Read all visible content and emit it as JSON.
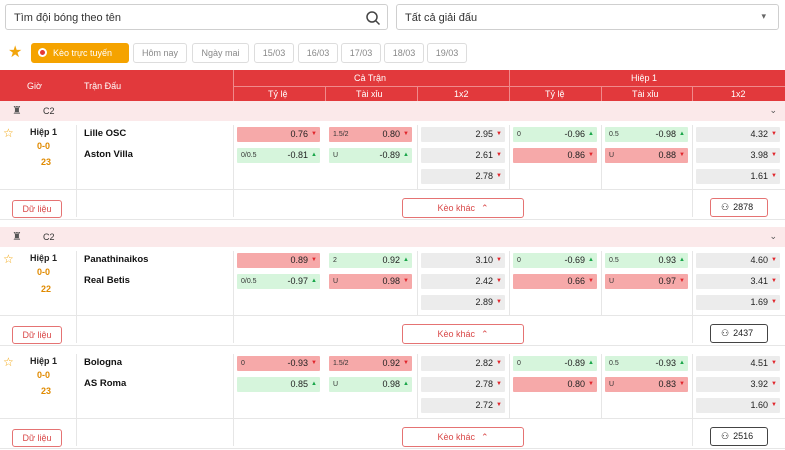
{
  "search": {
    "placeholder": "Tìm đội bóng theo tên"
  },
  "league_select": {
    "value": "Tất cả giải đấu"
  },
  "filters": {
    "live": "Kèo trực tuyến",
    "days": [
      "Hôm nay",
      "Ngày mai",
      "15/03",
      "16/03",
      "17/03",
      "18/03",
      "19/03"
    ]
  },
  "header": {
    "time": "Giờ",
    "match": "Trận Đấu",
    "full": "Cả Trận",
    "half": "Hiệp 1",
    "cols": [
      "Tỷ lệ",
      "Tài xỉu",
      "1x2",
      "Tỷ lệ",
      "Tài xỉu",
      "1x2"
    ]
  },
  "matches": [
    {
      "league": "C2",
      "period": "Hiệp 1",
      "score": "0-0",
      "minute": "23",
      "home": "Lille OSC",
      "away": "Aston Villa",
      "data_label": "Dữ liệu",
      "more": "Kèo khác",
      "votes": "2878",
      "ft_hdp": [
        {
          "line": "",
          "val": "0.76",
          "dir": "dn",
          "c": "r"
        },
        {
          "line": "0/0.5",
          "val": "-0.81",
          "dir": "up",
          "c": "g"
        }
      ],
      "ft_ou": [
        {
          "line": "1.5/2",
          "val": "0.80",
          "dir": "dn",
          "c": "r"
        },
        {
          "line": "U",
          "val": "-0.89",
          "dir": "up",
          "c": "g"
        }
      ],
      "ft_1x2": [
        {
          "val": "2.95",
          "dir": "dn"
        },
        {
          "val": "2.61",
          "dir": "dn"
        },
        {
          "val": "2.78",
          "dir": "dn"
        }
      ],
      "h1_hdp": [
        {
          "line": "0",
          "val": "-0.96",
          "dir": "up",
          "c": "g"
        },
        {
          "line": "",
          "val": "0.86",
          "dir": "dn",
          "c": "r"
        }
      ],
      "h1_ou": [
        {
          "line": "0.5",
          "val": "-0.98",
          "dir": "up",
          "c": "g"
        },
        {
          "line": "U",
          "val": "0.88",
          "dir": "dn",
          "c": "r"
        }
      ],
      "h1_1x2": [
        {
          "val": "4.32",
          "dir": "dn"
        },
        {
          "val": "3.98",
          "dir": "dn"
        },
        {
          "val": "1.61",
          "dir": "dn"
        }
      ]
    },
    {
      "league": "C2",
      "period": "Hiệp 1",
      "score": "0-0",
      "minute": "22",
      "home": "Panathinaikos",
      "away": "Real Betis",
      "data_label": "Dữ liệu",
      "more": "Kèo khác",
      "votes": "2437",
      "ft_hdp": [
        {
          "line": "",
          "val": "0.89",
          "dir": "dn",
          "c": "r"
        },
        {
          "line": "0/0.5",
          "val": "-0.97",
          "dir": "up",
          "c": "g"
        }
      ],
      "ft_ou": [
        {
          "line": "2",
          "val": "0.92",
          "dir": "up",
          "c": "g"
        },
        {
          "line": "U",
          "val": "0.98",
          "dir": "dn",
          "c": "r"
        }
      ],
      "ft_1x2": [
        {
          "val": "3.10",
          "dir": "dn"
        },
        {
          "val": "2.42",
          "dir": "dn"
        },
        {
          "val": "2.89",
          "dir": "dn"
        }
      ],
      "h1_hdp": [
        {
          "line": "0",
          "val": "-0.69",
          "dir": "up",
          "c": "g"
        },
        {
          "line": "",
          "val": "0.66",
          "dir": "dn",
          "c": "r"
        }
      ],
      "h1_ou": [
        {
          "line": "0.5",
          "val": "0.93",
          "dir": "up",
          "c": "g"
        },
        {
          "line": "U",
          "val": "0.97",
          "dir": "dn",
          "c": "r"
        }
      ],
      "h1_1x2": [
        {
          "val": "4.60",
          "dir": "dn"
        },
        {
          "val": "3.41",
          "dir": "dn"
        },
        {
          "val": "1.69",
          "dir": "dn"
        }
      ]
    },
    {
      "league": "",
      "period": "Hiệp 1",
      "score": "0-0",
      "minute": "23",
      "home": "Bologna",
      "away": "AS Roma",
      "data_label": "Dữ liệu",
      "more": "Kèo khác",
      "votes": "2516",
      "ft_hdp": [
        {
          "line": "0",
          "val": "-0.93",
          "dir": "dn",
          "c": "r"
        },
        {
          "line": "",
          "val": "0.85",
          "dir": "up",
          "c": "g"
        }
      ],
      "ft_ou": [
        {
          "line": "1.5/2",
          "val": "0.92",
          "dir": "dn",
          "c": "r"
        },
        {
          "line": "U",
          "val": "0.98",
          "dir": "up",
          "c": "g"
        }
      ],
      "ft_1x2": [
        {
          "val": "2.82",
          "dir": "dn"
        },
        {
          "val": "2.78",
          "dir": "dn"
        },
        {
          "val": "2.72",
          "dir": "dn"
        }
      ],
      "h1_hdp": [
        {
          "line": "0",
          "val": "-0.89",
          "dir": "up",
          "c": "g"
        },
        {
          "line": "",
          "val": "0.80",
          "dir": "dn",
          "c": "r"
        }
      ],
      "h1_ou": [
        {
          "line": "0.5",
          "val": "-0.93",
          "dir": "up",
          "c": "g"
        },
        {
          "line": "U",
          "val": "0.83",
          "dir": "dn",
          "c": "r"
        }
      ],
      "h1_1x2": [
        {
          "val": "4.51",
          "dir": "dn"
        },
        {
          "val": "3.92",
          "dir": "dn"
        },
        {
          "val": "1.60",
          "dir": "dn"
        }
      ]
    }
  ]
}
